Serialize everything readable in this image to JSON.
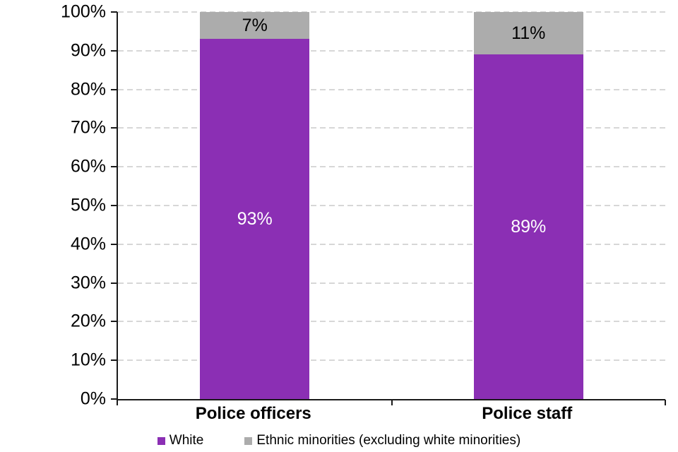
{
  "chart_data": {
    "type": "bar",
    "subtype": "stacked-column-100",
    "title": "",
    "xlabel": "",
    "ylabel": "",
    "categories": [
      "Police officers",
      "Police staff"
    ],
    "series": [
      {
        "name": "White",
        "values": [
          93,
          89
        ],
        "color": "#8B2FB4",
        "label_color": "#ffffff"
      },
      {
        "name": "Ethnic minorities (excluding white minorities)",
        "values": [
          7,
          11
        ],
        "color": "#acacac",
        "label_color": "#000000"
      }
    ],
    "data_labels": [
      [
        "93%",
        "89%"
      ],
      [
        "7%",
        "11%"
      ]
    ],
    "y_axis": {
      "min": 0,
      "max": 100,
      "tick_step": 10,
      "ticks": [
        "0%",
        "10%",
        "20%",
        "30%",
        "40%",
        "50%",
        "60%",
        "70%",
        "80%",
        "90%",
        "100%"
      ]
    },
    "grid": {
      "horizontal": true,
      "style": "dashed",
      "color": "#d7d7d7"
    },
    "axis_color": "#1a1a1a",
    "legend_position": "bottom"
  }
}
